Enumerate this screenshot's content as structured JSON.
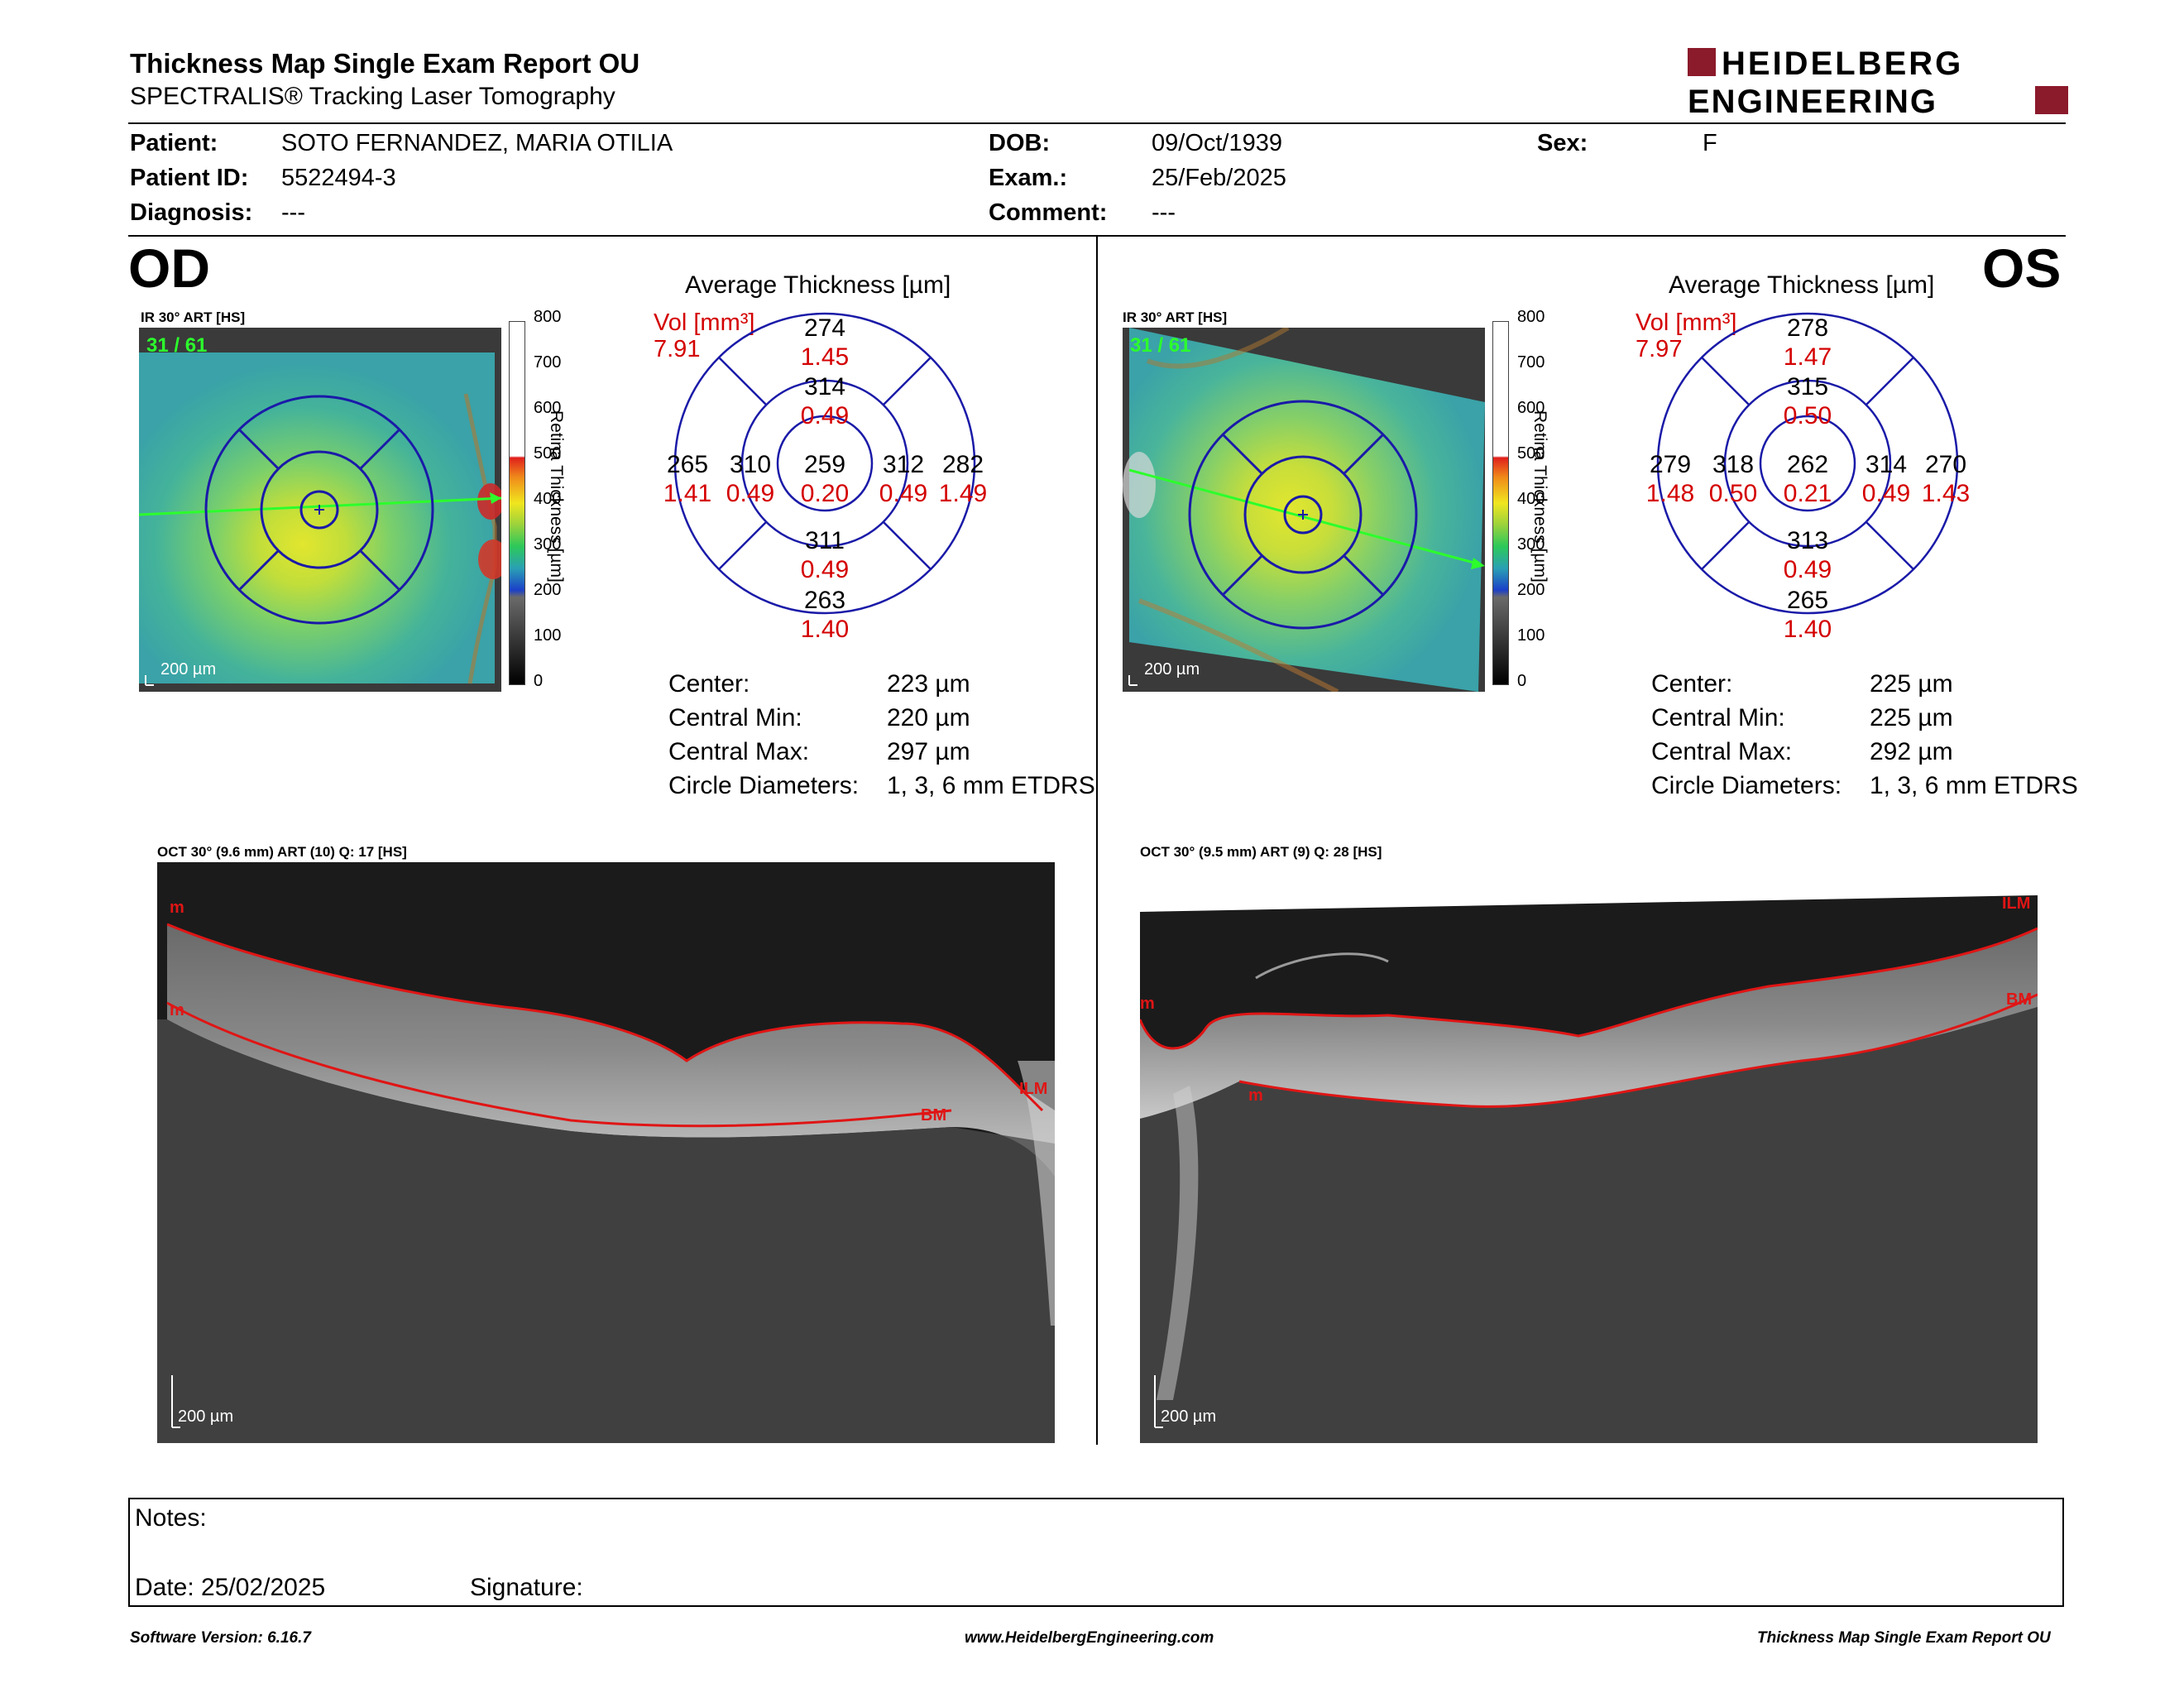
{
  "report": {
    "title": "Thickness Map Single Exam Report OU",
    "subtitle": "SPECTRALIS® Tracking Laser Tomography",
    "logo_line1": "HEIDELBERG",
    "logo_line2": "ENGINEERING"
  },
  "patient": {
    "patient_label": "Patient:",
    "patient_value": "SOTO FERNANDEZ, MARIA OTILIA",
    "id_label": "Patient ID:",
    "id_value": "5522494-3",
    "diagnosis_label": "Diagnosis:",
    "diagnosis_value": "---",
    "dob_label": "DOB:",
    "dob_value": "09/Oct/1939",
    "exam_label": "Exam.:",
    "exam_value": "25/Feb/2025",
    "comment_label": "Comment:",
    "comment_value": "---",
    "sex_label": "Sex:",
    "sex_value": "F"
  },
  "colorbar": {
    "ticks": [
      "800",
      "700",
      "600",
      "500",
      "400",
      "300",
      "200",
      "100",
      "0"
    ],
    "title": "Retina Thickness [µm]"
  },
  "od": {
    "eye": "OD",
    "ir_label": "IR 30° ART [HS]",
    "frame": "31 / 61",
    "scale": "200 µm",
    "avg_title": "Average Thickness [µm]",
    "vol_label": "Vol [mm³]",
    "vol_value": "7.91",
    "sectors": {
      "sup_outer_t": "274",
      "sup_outer_v": "1.45",
      "sup_inner_t": "314",
      "sup_inner_v": "0.49",
      "left_outer_t": "265",
      "left_outer_v": "1.41",
      "left_inner_t": "310",
      "left_inner_v": "0.49",
      "center_t": "259",
      "center_v": "0.20",
      "right_inner_t": "312",
      "right_inner_v": "0.49",
      "right_outer_t": "282",
      "right_outer_v": "1.49",
      "inf_inner_t": "311",
      "inf_inner_v": "0.49",
      "inf_outer_t": "263",
      "inf_outer_v": "1.40"
    },
    "stats": {
      "center_l": "Center:",
      "center_v": "223 µm",
      "min_l": "Central Min:",
      "min_v": "220 µm",
      "max_l": "Central Max:",
      "max_v": "297 µm",
      "diam_l": "Circle Diameters:",
      "diam_v": "1, 3, 6 mm ETDRS"
    },
    "oct_label": "OCT 30° (9.6 mm) ART (10) Q: 17 [HS]",
    "oct_scale": "200 µm",
    "layer_top": "m",
    "layer_mid": "m",
    "layer_ilm": "ILM",
    "layer_bm": "BM"
  },
  "os": {
    "eye": "OS",
    "ir_label": "IR 30° ART [HS]",
    "frame": "31 / 61",
    "scale": "200 µm",
    "avg_title": "Average Thickness [µm]",
    "vol_label": "Vol [mm³]",
    "vol_value": "7.97",
    "sectors": {
      "sup_outer_t": "278",
      "sup_outer_v": "1.47",
      "sup_inner_t": "315",
      "sup_inner_v": "0.50",
      "left_outer_t": "279",
      "left_outer_v": "1.48",
      "left_inner_t": "318",
      "left_inner_v": "0.50",
      "center_t": "262",
      "center_v": "0.21",
      "right_inner_t": "314",
      "right_inner_v": "0.49",
      "right_outer_t": "270",
      "right_outer_v": "1.43",
      "inf_inner_t": "313",
      "inf_inner_v": "0.49",
      "inf_outer_t": "265",
      "inf_outer_v": "1.40"
    },
    "stats": {
      "center_l": "Center:",
      "center_v": "225 µm",
      "min_l": "Central Min:",
      "min_v": "225 µm",
      "max_l": "Central Max:",
      "max_v": "292 µm",
      "diam_l": "Circle Diameters:",
      "diam_v": "1, 3, 6 mm ETDRS"
    },
    "oct_label": "OCT 30° (9.5 mm) ART (9) Q: 28 [HS]",
    "oct_scale": "200 µm",
    "layer_ilm": "ILM",
    "layer_bm": "BM",
    "layer_left": "m",
    "layer_low": "m"
  },
  "notes": {
    "notes_label": "Notes:",
    "date_label": "Date: 25/02/2025",
    "signature_label": "Signature:"
  },
  "footer": {
    "software": "Software Version: 6.16.7",
    "website": "www.HeidelbergEngineering.com",
    "report_name": "Thickness Map Single Exam Report OU"
  },
  "colors": {
    "accent_red": "#d40000",
    "logo_red": "#8b1a2b",
    "grid_blue": "#1a1aa8"
  }
}
